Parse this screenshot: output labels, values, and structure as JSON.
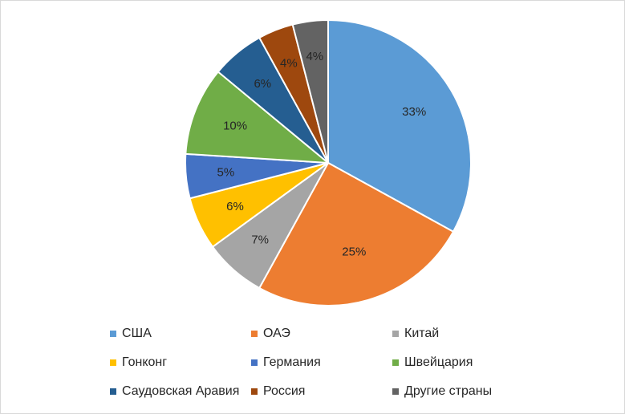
{
  "chart_data": {
    "type": "pie",
    "title": "",
    "legend_position": "bottom",
    "slices": [
      {
        "name": "США",
        "value": 33,
        "label": "33%",
        "color": "#5B9BD5"
      },
      {
        "name": "ОАЭ",
        "value": 25,
        "label": "25%",
        "color": "#ED7D31"
      },
      {
        "name": "Китай",
        "value": 7,
        "label": "7%",
        "color": "#A5A5A5"
      },
      {
        "name": "Гонконг",
        "value": 6,
        "label": "6%",
        "color": "#FFC000"
      },
      {
        "name": "Германия",
        "value": 5,
        "label": "5%",
        "color": "#4472C4"
      },
      {
        "name": "Швейцария",
        "value": 10,
        "label": "10%",
        "color": "#70AD47"
      },
      {
        "name": "Саудовская Аравия",
        "value": 6,
        "label": "6%",
        "color": "#255E91"
      },
      {
        "name": "Россия",
        "value": 4,
        "label": "4%",
        "color": "#9E480E"
      },
      {
        "name": "Другие страны",
        "value": 4,
        "label": "4%",
        "color": "#636363"
      }
    ]
  }
}
